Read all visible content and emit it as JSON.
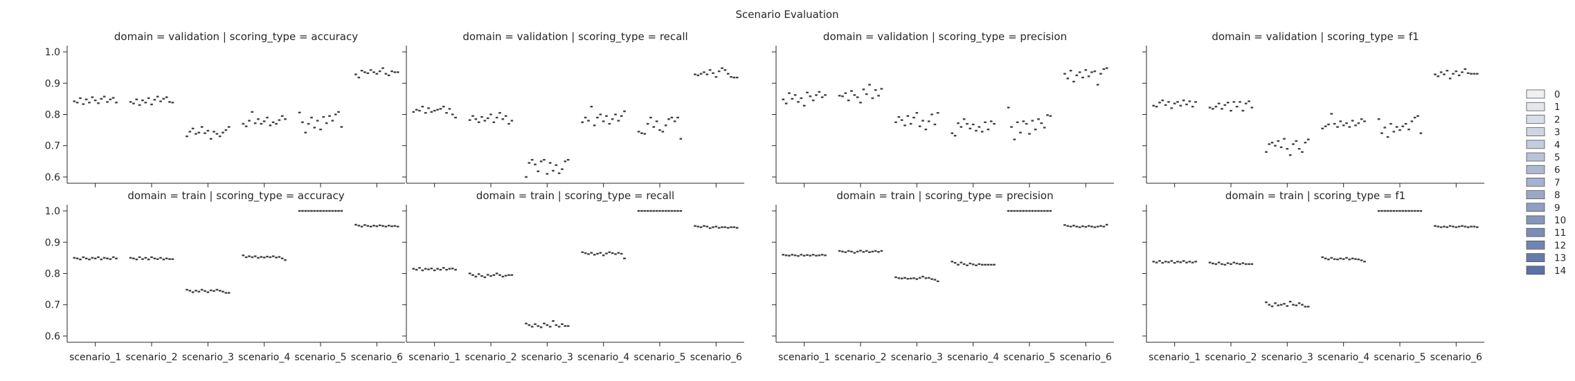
{
  "chart_data": {
    "type": "facet-grid-boxplot",
    "title": "Scenario Evaluation",
    "facet_prefix": {
      "row": "domain",
      "col": "scoring_type"
    },
    "row_values": [
      "validation",
      "train"
    ],
    "col_values": [
      "accuracy",
      "recall",
      "precision",
      "f1"
    ],
    "categories": [
      "scenario_1",
      "scenario_2",
      "scenario_3",
      "scenario_4",
      "scenario_5",
      "scenario_6"
    ],
    "ylim": [
      0.58,
      1.02
    ],
    "yticks": [
      0.6,
      0.7,
      0.8,
      0.9,
      1.0
    ],
    "ytick_labels": [
      "0.6",
      "0.7",
      "0.8",
      "0.9",
      "1.0"
    ],
    "legend": {
      "position": "right",
      "entries": [
        "0",
        "1",
        "2",
        "3",
        "4",
        "5",
        "6",
        "7",
        "8",
        "9",
        "10",
        "11",
        "12",
        "13",
        "14"
      ],
      "color_start": "#eef0f4",
      "color_end": "#5b72a5"
    },
    "panels": [
      {
        "domain": "validation",
        "scoring": "accuracy",
        "medians": [
          [
            0.842,
            0.838,
            0.852,
            0.833,
            0.848,
            0.838,
            0.855,
            0.845,
            0.836,
            0.85,
            0.857,
            0.84,
            0.848,
            0.853,
            0.838
          ],
          [
            0.84,
            0.835,
            0.848,
            0.83,
            0.845,
            0.838,
            0.852,
            0.832,
            0.847,
            0.857,
            0.842,
            0.85,
            0.855,
            0.84,
            0.838
          ],
          [
            0.73,
            0.745,
            0.755,
            0.738,
            0.742,
            0.76,
            0.74,
            0.748,
            0.722,
            0.745,
            0.738,
            0.73,
            0.742,
            0.75,
            0.76
          ],
          [
            0.77,
            0.762,
            0.78,
            0.808,
            0.772,
            0.785,
            0.77,
            0.778,
            0.79,
            0.765,
            0.775,
            0.77,
            0.782,
            0.795,
            0.785
          ],
          [
            0.806,
            0.775,
            0.742,
            0.77,
            0.79,
            0.758,
            0.78,
            0.752,
            0.792,
            0.772,
            0.795,
            0.78,
            0.8,
            0.808,
            0.76
          ],
          [
            0.928,
            0.918,
            0.94,
            0.935,
            0.932,
            0.942,
            0.935,
            0.93,
            0.938,
            0.948,
            0.93,
            0.925,
            0.938,
            0.935,
            0.935
          ]
        ]
      },
      {
        "domain": "validation",
        "scoring": "recall",
        "medians": [
          [
            0.808,
            0.815,
            0.812,
            0.825,
            0.805,
            0.82,
            0.808,
            0.812,
            0.815,
            0.818,
            0.825,
            0.805,
            0.818,
            0.8,
            0.79
          ],
          [
            0.782,
            0.795,
            0.785,
            0.775,
            0.792,
            0.78,
            0.788,
            0.8,
            0.775,
            0.79,
            0.805,
            0.785,
            0.795,
            0.77,
            0.78
          ],
          [
            0.6,
            0.645,
            0.655,
            0.64,
            0.618,
            0.65,
            0.655,
            0.61,
            0.645,
            0.62,
            0.638,
            0.612,
            0.625,
            0.65,
            0.655
          ],
          [
            0.775,
            0.79,
            0.78,
            0.825,
            0.765,
            0.79,
            0.8,
            0.778,
            0.795,
            0.77,
            0.785,
            0.8,
            0.78,
            0.795,
            0.81
          ],
          [
            0.745,
            0.74,
            0.738,
            0.77,
            0.79,
            0.76,
            0.778,
            0.75,
            0.745,
            0.765,
            0.785,
            0.79,
            0.778,
            0.79,
            0.722
          ],
          [
            0.928,
            0.925,
            0.93,
            0.935,
            0.928,
            0.942,
            0.932,
            0.92,
            0.938,
            0.948,
            0.942,
            0.93,
            0.92,
            0.918,
            0.918
          ]
        ]
      },
      {
        "domain": "validation",
        "scoring": "precision",
        "medians": [
          [
            0.848,
            0.835,
            0.868,
            0.85,
            0.862,
            0.84,
            0.852,
            0.828,
            0.87,
            0.858,
            0.845,
            0.862,
            0.872,
            0.855,
            0.862
          ],
          [
            0.86,
            0.858,
            0.868,
            0.845,
            0.875,
            0.862,
            0.855,
            0.838,
            0.88,
            0.865,
            0.895,
            0.852,
            0.878,
            0.86,
            0.882
          ],
          [
            0.775,
            0.792,
            0.782,
            0.765,
            0.795,
            0.77,
            0.79,
            0.805,
            0.762,
            0.78,
            0.752,
            0.778,
            0.8,
            0.768,
            0.805
          ],
          [
            0.74,
            0.732,
            0.772,
            0.76,
            0.785,
            0.77,
            0.755,
            0.768,
            0.748,
            0.76,
            0.745,
            0.775,
            0.752,
            0.778,
            0.77
          ],
          [
            0.822,
            0.76,
            0.72,
            0.775,
            0.742,
            0.778,
            0.77,
            0.738,
            0.78,
            0.752,
            0.785,
            0.772,
            0.758,
            0.798,
            0.795
          ],
          [
            0.93,
            0.915,
            0.94,
            0.905,
            0.925,
            0.935,
            0.918,
            0.942,
            0.922,
            0.935,
            0.938,
            0.895,
            0.93,
            0.945,
            0.948
          ]
        ]
      },
      {
        "domain": "validation",
        "scoring": "f1",
        "medians": [
          [
            0.828,
            0.825,
            0.838,
            0.845,
            0.83,
            0.84,
            0.82,
            0.835,
            0.84,
            0.828,
            0.845,
            0.832,
            0.842,
            0.825,
            0.84
          ],
          [
            0.822,
            0.818,
            0.825,
            0.835,
            0.818,
            0.83,
            0.838,
            0.812,
            0.84,
            0.825,
            0.84,
            0.812,
            0.835,
            0.842,
            0.822
          ],
          [
            0.68,
            0.705,
            0.71,
            0.7,
            0.715,
            0.695,
            0.722,
            0.69,
            0.67,
            0.705,
            0.715,
            0.69,
            0.68,
            0.71,
            0.72
          ],
          [
            0.755,
            0.762,
            0.768,
            0.802,
            0.77,
            0.76,
            0.778,
            0.765,
            0.772,
            0.76,
            0.78,
            0.765,
            0.772,
            0.785,
            0.778
          ],
          [
            0.785,
            0.74,
            0.758,
            0.728,
            0.77,
            0.745,
            0.76,
            0.75,
            0.762,
            0.77,
            0.752,
            0.778,
            0.79,
            0.795,
            0.74
          ],
          [
            0.928,
            0.922,
            0.935,
            0.928,
            0.94,
            0.915,
            0.93,
            0.938,
            0.925,
            0.935,
            0.945,
            0.932,
            0.93,
            0.93,
            0.93
          ]
        ]
      },
      {
        "domain": "train",
        "scoring": "accuracy",
        "medians": [
          [
            0.85,
            0.848,
            0.845,
            0.852,
            0.848,
            0.845,
            0.85,
            0.848,
            0.852,
            0.845,
            0.85,
            0.848,
            0.846,
            0.852,
            0.848
          ],
          [
            0.85,
            0.848,
            0.845,
            0.852,
            0.846,
            0.85,
            0.845,
            0.852,
            0.848,
            0.846,
            0.85,
            0.845,
            0.848,
            0.846,
            0.846
          ],
          [
            0.748,
            0.745,
            0.74,
            0.745,
            0.742,
            0.748,
            0.744,
            0.74,
            0.746,
            0.744,
            0.748,
            0.745,
            0.742,
            0.738,
            0.738
          ],
          [
            0.858,
            0.852,
            0.855,
            0.852,
            0.855,
            0.85,
            0.853,
            0.851,
            0.854,
            0.852,
            0.855,
            0.851,
            0.853,
            0.848,
            0.843
          ],
          [
            1.0,
            1.0,
            1.0,
            1.0,
            1.0,
            1.0,
            1.0,
            1.0,
            1.0,
            1.0,
            1.0,
            1.0,
            1.0,
            1.0,
            1.0
          ],
          [
            0.956,
            0.953,
            0.95,
            0.955,
            0.952,
            0.95,
            0.953,
            0.951,
            0.954,
            0.952,
            0.95,
            0.953,
            0.951,
            0.952,
            0.95
          ]
        ]
      },
      {
        "domain": "train",
        "scoring": "recall",
        "medians": [
          [
            0.815,
            0.812,
            0.818,
            0.81,
            0.815,
            0.813,
            0.816,
            0.81,
            0.815,
            0.812,
            0.818,
            0.812,
            0.815,
            0.816,
            0.812
          ],
          [
            0.8,
            0.795,
            0.79,
            0.798,
            0.792,
            0.788,
            0.796,
            0.792,
            0.795,
            0.8,
            0.795,
            0.79,
            0.793,
            0.795,
            0.795
          ],
          [
            0.64,
            0.635,
            0.63,
            0.638,
            0.632,
            0.628,
            0.64,
            0.635,
            0.63,
            0.648,
            0.635,
            0.63,
            0.638,
            0.632,
            0.632
          ],
          [
            0.868,
            0.865,
            0.862,
            0.866,
            0.86,
            0.863,
            0.866,
            0.858,
            0.864,
            0.868,
            0.865,
            0.862,
            0.866,
            0.863,
            0.848
          ],
          [
            1.0,
            1.0,
            1.0,
            1.0,
            1.0,
            1.0,
            1.0,
            1.0,
            1.0,
            1.0,
            1.0,
            1.0,
            1.0,
            1.0,
            1.0
          ],
          [
            0.952,
            0.95,
            0.948,
            0.952,
            0.95,
            0.945,
            0.948,
            0.95,
            0.946,
            0.948,
            0.948,
            0.946,
            0.948,
            0.948,
            0.946
          ]
        ]
      },
      {
        "domain": "train",
        "scoring": "precision",
        "medians": [
          [
            0.86,
            0.858,
            0.857,
            0.86,
            0.858,
            0.856,
            0.86,
            0.857,
            0.859,
            0.857,
            0.86,
            0.857,
            0.858,
            0.86,
            0.858
          ],
          [
            0.872,
            0.87,
            0.868,
            0.872,
            0.87,
            0.866,
            0.87,
            0.873,
            0.869,
            0.872,
            0.868,
            0.87,
            0.872,
            0.869,
            0.872
          ],
          [
            0.788,
            0.785,
            0.784,
            0.786,
            0.783,
            0.784,
            0.785,
            0.782,
            0.786,
            0.79,
            0.785,
            0.786,
            0.782,
            0.78,
            0.775
          ],
          [
            0.838,
            0.834,
            0.828,
            0.835,
            0.83,
            0.826,
            0.832,
            0.829,
            0.826,
            0.83,
            0.828,
            0.828,
            0.828,
            0.828,
            0.828
          ],
          [
            1.0,
            1.0,
            1.0,
            1.0,
            1.0,
            1.0,
            1.0,
            1.0,
            1.0,
            1.0,
            1.0,
            1.0,
            1.0,
            1.0,
            1.0
          ],
          [
            0.955,
            0.952,
            0.95,
            0.953,
            0.95,
            0.948,
            0.951,
            0.949,
            0.952,
            0.95,
            0.948,
            0.95,
            0.952,
            0.95,
            0.956
          ]
        ]
      },
      {
        "domain": "train",
        "scoring": "f1",
        "medians": [
          [
            0.838,
            0.835,
            0.84,
            0.834,
            0.838,
            0.836,
            0.84,
            0.834,
            0.838,
            0.836,
            0.84,
            0.835,
            0.838,
            0.835,
            0.838
          ],
          [
            0.835,
            0.832,
            0.83,
            0.835,
            0.83,
            0.828,
            0.833,
            0.83,
            0.835,
            0.832,
            0.83,
            0.833,
            0.83,
            0.83,
            0.83
          ],
          [
            0.708,
            0.7,
            0.695,
            0.705,
            0.698,
            0.7,
            0.703,
            0.696,
            0.71,
            0.7,
            0.698,
            0.705,
            0.7,
            0.694,
            0.694
          ],
          [
            0.852,
            0.848,
            0.845,
            0.85,
            0.846,
            0.845,
            0.848,
            0.846,
            0.85,
            0.845,
            0.848,
            0.846,
            0.845,
            0.842,
            0.838
          ],
          [
            1.0,
            1.0,
            1.0,
            1.0,
            1.0,
            1.0,
            1.0,
            1.0,
            1.0,
            1.0,
            1.0,
            1.0,
            1.0,
            1.0,
            1.0
          ],
          [
            0.952,
            0.95,
            0.948,
            0.95,
            0.948,
            0.952,
            0.95,
            0.948,
            0.95,
            0.952,
            0.95,
            0.948,
            0.95,
            0.95,
            0.948
          ]
        ]
      }
    ]
  }
}
